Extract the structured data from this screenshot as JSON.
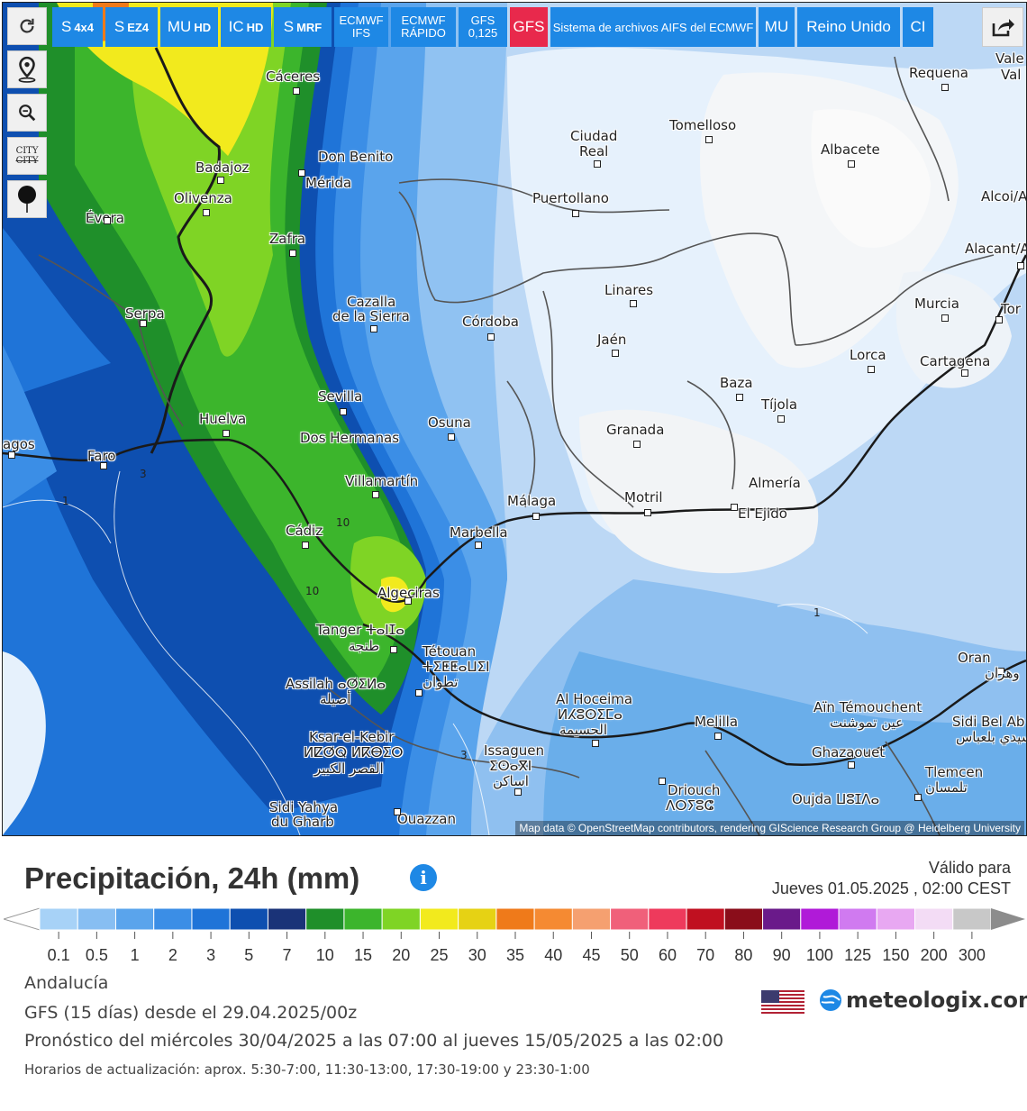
{
  "toolbar_left": {
    "refresh_icon": "refresh-icon",
    "location_icon": "map-pin-icon",
    "zoom_icon": "zoom-out-icon",
    "city_toggle_label": "CITY",
    "city_toggle_label_struck": "CITY",
    "pin_icon": "pushpin-icon"
  },
  "model_buttons": [
    {
      "main": "S",
      "sub": "4x4"
    },
    {
      "main": "S",
      "sub": "EZ4"
    },
    {
      "main": "MU",
      "sub": "HD"
    },
    {
      "main": "IC",
      "sub": "HD"
    },
    {
      "main": "S",
      "sub": "MRF"
    },
    {
      "line1": "ECMWF",
      "line2": "IFS"
    },
    {
      "line1": "ECMWF",
      "line2": "RÁPIDO"
    },
    {
      "line1": "GFS",
      "line2": "0,125"
    },
    {
      "main": "GFS",
      "active": true
    },
    {
      "main": "Sistema de archivos AIFS del ECMWF"
    },
    {
      "main": "MU"
    },
    {
      "main": "Reino Unido"
    },
    {
      "main": "CI"
    }
  ],
  "share_icon": "share-icon",
  "map": {
    "cities": [
      {
        "name": "Cáceres"
      },
      {
        "name": "Requena"
      },
      {
        "name": "Vale"
      },
      {
        "name": "Val"
      },
      {
        "name": "Tomelloso"
      },
      {
        "name": "Ciudad"
      },
      {
        "name": "Real"
      },
      {
        "name": "Albacete"
      },
      {
        "name": "Badajoz"
      },
      {
        "name": "Don Benito"
      },
      {
        "name": "Mérida"
      },
      {
        "name": "Olivenza"
      },
      {
        "name": "Puertollano"
      },
      {
        "name": "Alcoi/A"
      },
      {
        "name": "Évora"
      },
      {
        "name": "Zafra"
      },
      {
        "name": "Alacant/A"
      },
      {
        "name": "Linares"
      },
      {
        "name": "Cazalla"
      },
      {
        "name": "de la Sierra"
      },
      {
        "name": "Murcia"
      },
      {
        "name": "Tor"
      },
      {
        "name": "Serpa"
      },
      {
        "name": "Córdoba"
      },
      {
        "name": "Jaén"
      },
      {
        "name": "Lorca"
      },
      {
        "name": "Cartagena"
      },
      {
        "name": "Baza"
      },
      {
        "name": "Sevilla"
      },
      {
        "name": "Tíjola"
      },
      {
        "name": "Huelva"
      },
      {
        "name": "Osuna"
      },
      {
        "name": "Dos Hermanas"
      },
      {
        "name": "Granada"
      },
      {
        "name": "agos"
      },
      {
        "name": "Faro"
      },
      {
        "name": "Villamartín"
      },
      {
        "name": "Almería"
      },
      {
        "name": "Málaga"
      },
      {
        "name": "Motril"
      },
      {
        "name": "El Ejido"
      },
      {
        "name": "Cádiz"
      },
      {
        "name": "Marbella"
      },
      {
        "name": "Algeciras"
      },
      {
        "name": "Tanger ⵜⴰⵏⵊⴰ"
      },
      {
        "name": "طنجة"
      },
      {
        "name": "Tétouan"
      },
      {
        "name": "ⵜⵉⵟⵟⴰⵡⵉⵏ"
      },
      {
        "name": "تطوان"
      },
      {
        "name": "Oran"
      },
      {
        "name": "وهران"
      },
      {
        "name": "Assilah ⴰⵚⵉⵍⴰ"
      },
      {
        "name": "أصيلة"
      },
      {
        "name": "Al Hoceima"
      },
      {
        "name": "ⵍⵃⵓⵙⵉⵎⴰ"
      },
      {
        "name": "الحسيمة"
      },
      {
        "name": "Aïn Témouchent"
      },
      {
        "name": "عين تموشنت"
      },
      {
        "name": "Melilla"
      },
      {
        "name": "Sidi Bel Ab"
      },
      {
        "name": "سيدي بلعباس"
      },
      {
        "name": "Ksar-el-Kebir"
      },
      {
        "name": "ⵍⵇⵚⵕ ⵍⴽⴱⵉⵔ"
      },
      {
        "name": "القصر الكبير"
      },
      {
        "name": "Issaguen"
      },
      {
        "name": "ⵉⵙⴰⴳⵏ"
      },
      {
        "name": "اساكن"
      },
      {
        "name": "Ghazaouet"
      },
      {
        "name": "Tlemcen"
      },
      {
        "name": "تلمسان"
      },
      {
        "name": "Driouch"
      },
      {
        "name": "ⴷⵔⵢⵓⵛ"
      },
      {
        "name": "Oujda ⵡⵓⵊⴷⴰ"
      },
      {
        "name": "Sidi Yahya"
      },
      {
        "name": "du Gharb"
      },
      {
        "name": "Ouazzan"
      }
    ],
    "contour_labels": [
      "3",
      "1",
      "10",
      "10",
      "1",
      "3"
    ],
    "attribution": "Map data © OpenStreetMap contributors, rendering GIScience Research Group @ Heidelberg University"
  },
  "header": {
    "title": "Precipitación, 24h (mm)",
    "info_icon": "info-icon",
    "valid_label": "Válido para",
    "valid_date": "Jueves 01.05.2025 , 02:00 CEST"
  },
  "legend": {
    "labels": [
      "0.1",
      "0.5",
      "1",
      "2",
      "3",
      "5",
      "7",
      "10",
      "15",
      "20",
      "25",
      "30",
      "35",
      "40",
      "45",
      "50",
      "60",
      "70",
      "80",
      "90",
      "100",
      "125",
      "150",
      "200",
      "300"
    ],
    "colors": [
      "#a7d2f7",
      "#87bef2",
      "#5aa4ec",
      "#3b8ee6",
      "#1f74d8",
      "#0e4fb0",
      "#1a3378",
      "#1f8f2a",
      "#3cb52c",
      "#7fd425",
      "#f2ea1d",
      "#e6d214",
      "#ef7a1a",
      "#f58a32",
      "#f5a070",
      "#f0607a",
      "#ee3a5c",
      "#c01020",
      "#8a0d1a",
      "#6a1a8a",
      "#b01ad8",
      "#d07af0",
      "#e8a8f2",
      "#f3dcf5",
      "#c8c8c8"
    ],
    "end_left_color": "#ffffff",
    "end_right_color": "#8c8c8c"
  },
  "footer": {
    "region": "Andalucía",
    "model_line": "GFS (15 días) desde el 29.04.2025/00z",
    "forecast_line": "Pronóstico del miércoles 30/04/2025 a las 07:00 al jueves 15/05/2025 a las 02:00",
    "update_line": "Horarios de actualización: aprox. 5:30-7:00, 11:30-13:00, 17:30-19:00 y 23:30-1:00",
    "flag_icon": "us-flag-icon",
    "brand_icon": "meteologix-globe-icon",
    "brand_text": "meteologix.com"
  }
}
